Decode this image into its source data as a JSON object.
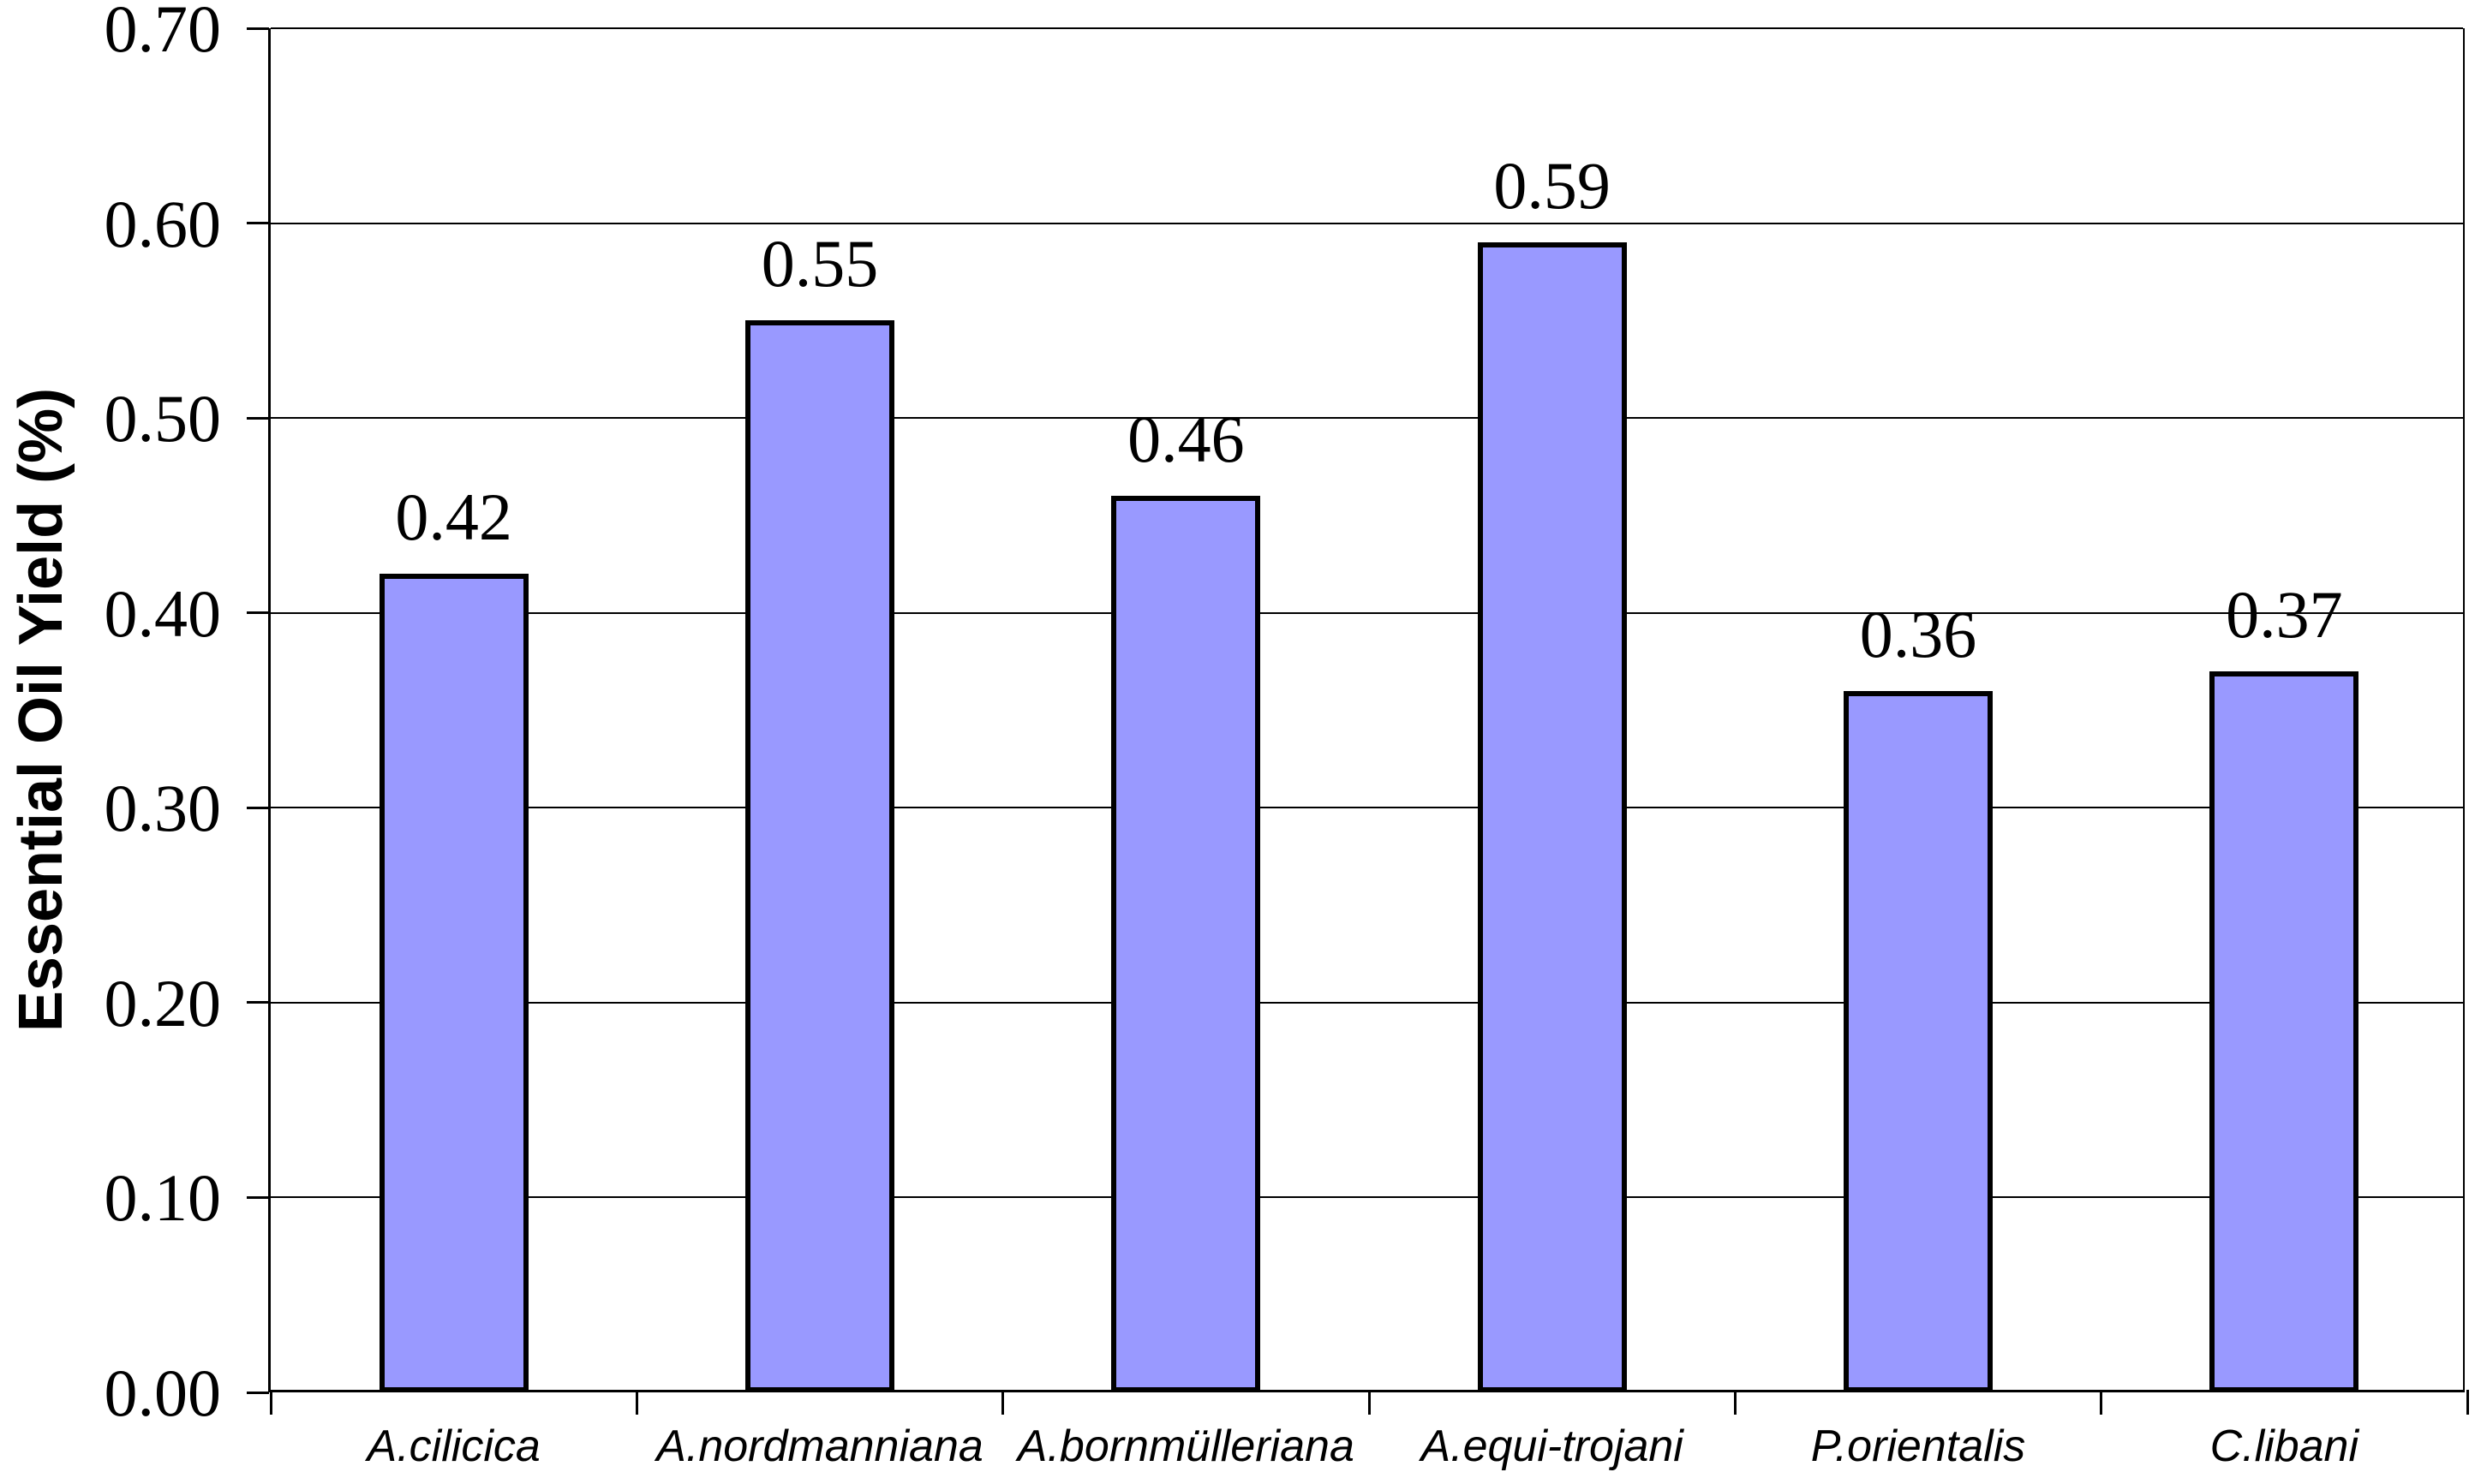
{
  "chart_data": {
    "type": "bar",
    "title": "",
    "xlabel": "",
    "ylabel": "Essential Oil Yield (%)",
    "categories": [
      "A.cilicica",
      "A.nordmanniana",
      "A.bornmülleriana",
      "A.equi-trojani",
      "P.orientalis",
      "C.libani"
    ],
    "values": [
      0.42,
      0.55,
      0.46,
      0.59,
      0.36,
      0.37
    ],
    "value_labels": [
      "0.42",
      "0.55",
      "0.46",
      "0.59",
      "0.36",
      "0.37"
    ],
    "y_ticks": [
      "0.00",
      "0.10",
      "0.20",
      "0.30",
      "0.40",
      "0.50",
      "0.60",
      "0.70"
    ],
    "ylim": [
      0.0,
      0.7
    ],
    "grid": true,
    "legend_position": "none",
    "bar_fill_color": "#9999FF",
    "bar_border_color": "#000000"
  }
}
